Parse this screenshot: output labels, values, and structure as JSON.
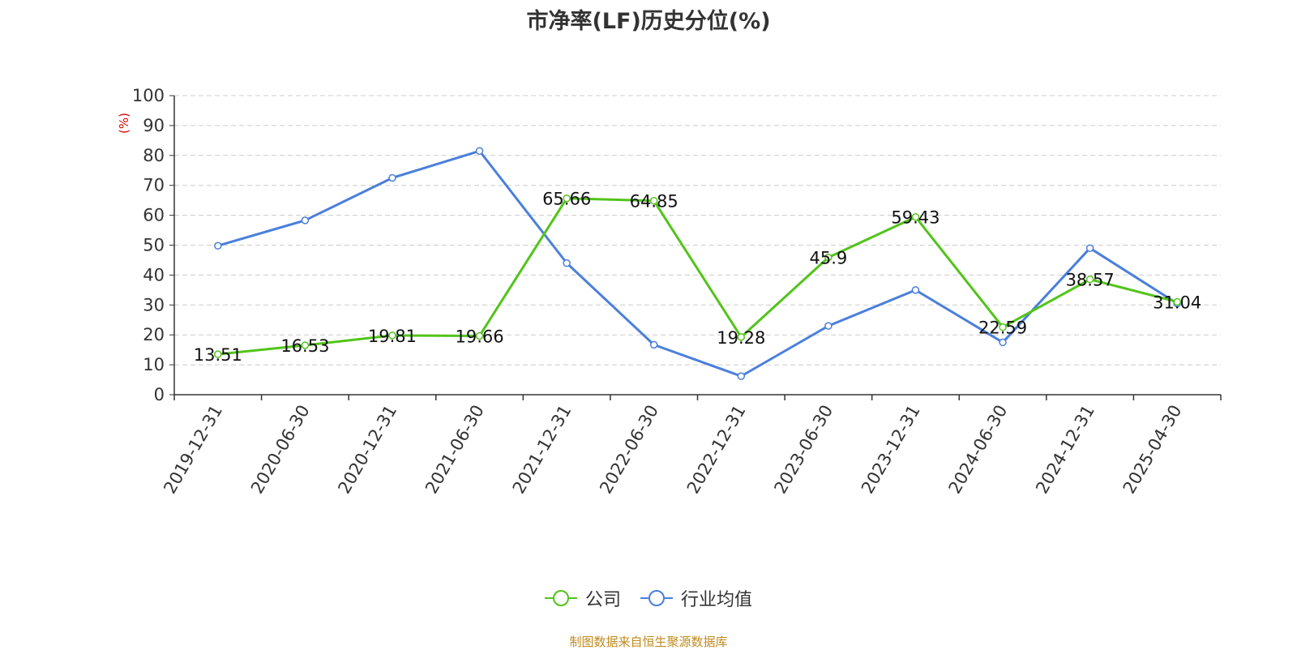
{
  "chart_data": {
    "type": "line",
    "title": "市净率(LF)历史分位(%)",
    "ylabel": "(%)",
    "ylim": [
      0,
      100
    ],
    "yticks": [
      0,
      10,
      20,
      30,
      40,
      50,
      60,
      70,
      80,
      90,
      100
    ],
    "categories": [
      "2019-12-31",
      "2020-06-30",
      "2020-12-31",
      "2021-06-30",
      "2021-12-31",
      "2022-06-30",
      "2022-12-31",
      "2023-06-30",
      "2023-12-31",
      "2024-06-30",
      "2024-12-31",
      "2025-04-30"
    ],
    "grid": true,
    "legend_position": "bottom",
    "series": [
      {
        "name": "公司",
        "color": "#52c41a",
        "show_labels": true,
        "values": [
          13.51,
          16.53,
          19.81,
          19.66,
          65.66,
          64.85,
          19.28,
          45.9,
          59.43,
          22.59,
          38.57,
          31.04
        ]
      },
      {
        "name": "行业均值",
        "color": "#4a7fdc",
        "show_labels": false,
        "values": [
          49.8,
          58.3,
          72.5,
          81.5,
          44.0,
          16.7,
          6.2,
          23.0,
          35.0,
          17.5,
          49.0,
          30.5
        ]
      }
    ]
  },
  "source_note": "制图数据来自恒生聚源数据库"
}
